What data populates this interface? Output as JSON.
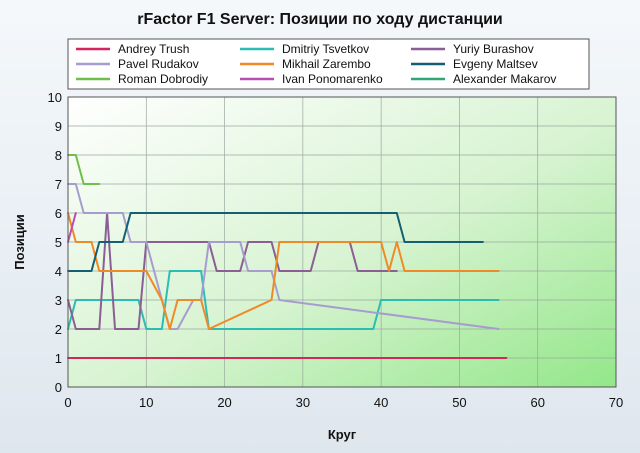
{
  "chart_data": {
    "type": "line",
    "title": "rFactor F1 Server: Позиции по ходу дистанции",
    "xlabel": "Круг",
    "ylabel": "Позиции",
    "xlim": [
      0,
      70
    ],
    "ylim": [
      0,
      10
    ],
    "xticks": [
      0,
      10,
      20,
      30,
      40,
      50,
      60,
      70
    ],
    "yticks": [
      0,
      1,
      2,
      3,
      4,
      5,
      6,
      7,
      8,
      9,
      10
    ],
    "grid": true,
    "legend_position": "top",
    "series": [
      {
        "name": "Andrey Trush",
        "color": "#d6245c",
        "x": [
          0,
          56
        ],
        "y": [
          1,
          1
        ]
      },
      {
        "name": "Dmitriy Tsvetkov",
        "color": "#2bbdb4",
        "x": [
          0,
          1,
          9,
          10,
          12,
          13,
          17,
          18,
          39,
          40,
          55
        ],
        "y": [
          2,
          3,
          3,
          2,
          2,
          4,
          4,
          2,
          2,
          3,
          3
        ]
      },
      {
        "name": "Yuriy Burashov",
        "color": "#8b5e95",
        "x": [
          0,
          1,
          4,
          5,
          6,
          9,
          10,
          18,
          19,
          22,
          23,
          26,
          27,
          31,
          32,
          36,
          37,
          41,
          42
        ],
        "y": [
          3,
          2,
          2,
          6,
          2,
          2,
          5,
          5,
          4,
          4,
          5,
          5,
          4,
          4,
          5,
          5,
          4,
          4,
          4
        ]
      },
      {
        "name": "Pavel Rudakov",
        "color": "#a79ccf",
        "x": [
          0,
          1,
          2,
          7,
          8,
          10,
          11,
          13,
          14,
          16,
          17,
          18,
          19,
          22,
          23,
          26,
          27,
          55
        ],
        "y": [
          7,
          7,
          6,
          6,
          5,
          5,
          4,
          2,
          2,
          3,
          3,
          5,
          5,
          5,
          4,
          4,
          3,
          2
        ]
      },
      {
        "name": "Mikhail Zarembo",
        "color": "#f08a26",
        "x": [
          0,
          1,
          2,
          3,
          4,
          9,
          10,
          12,
          13,
          14,
          17,
          18,
          26,
          27,
          40,
          41,
          42,
          43,
          55
        ],
        "y": [
          6,
          5,
          5,
          5,
          4,
          4,
          4,
          3,
          2,
          3,
          3,
          2,
          3,
          5,
          5,
          4,
          5,
          4,
          4
        ]
      },
      {
        "name": "Evgeny Maltsev",
        "color": "#155f74",
        "x": [
          0,
          3,
          4,
          7,
          8,
          42,
          43,
          53
        ],
        "y": [
          4,
          4,
          5,
          5,
          6,
          6,
          5,
          5
        ]
      },
      {
        "name": "Roman Dobrodiy",
        "color": "#6fbf4a",
        "x": [
          0,
          1,
          2,
          4
        ],
        "y": [
          8,
          8,
          7,
          7
        ]
      },
      {
        "name": "Ivan Ponomarenko",
        "color": "#b84fb2",
        "x": [
          0,
          1
        ],
        "y": [
          5,
          6
        ]
      },
      {
        "name": "Alexander Makarov",
        "color": "#2fa878",
        "x": [],
        "y": []
      }
    ]
  }
}
